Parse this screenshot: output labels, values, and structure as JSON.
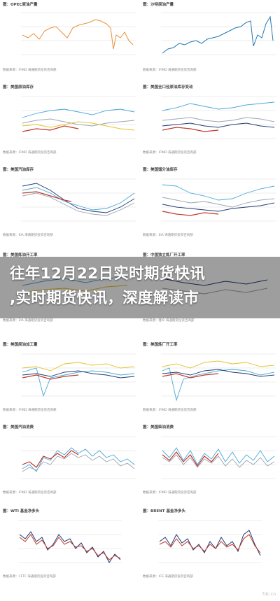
{
  "headline": {
    "line1": "往年12月22日实时期货快讯",
    "line2": ",实时期货快讯，深度解读市"
  },
  "panels": [
    {
      "title": "图：OPEC原油产量",
      "source": "数据来源：IFIND 海通期货投资咨询部"
    },
    {
      "title": "图：沙特原油产量",
      "source": "数据来源：IFIND 海通期货投资咨询部"
    },
    {
      "title": "图：美国原油库存",
      "source": "数据来源：IFIND 海通期货投资咨询部"
    },
    {
      "title": "图：美国全口径原油库存变动",
      "source": "数据来源：IFIND 海通期货投资咨询部"
    },
    {
      "title": "图：美国汽油库存",
      "source": "数据来源：EIA 海通期货投资咨询部"
    },
    {
      "title": "图：美国馏分油库存",
      "source": "数据来源：EIA 海通期货投资咨询部"
    },
    {
      "title": "图：美国炼油开工率",
      "source": "数据来源：EIA 海通期货投资咨询部"
    },
    {
      "title": "图：中国独立炼厂开工率",
      "source": "数据来源：隆众 海通期货投资咨询部"
    },
    {
      "title": "图：美国原油加工量",
      "source": "数据来源：IFIND 海通期货投资咨询部"
    },
    {
      "title": "图：美国炼厂开工率",
      "source": "数据来源：IFIND 海通期货投资咨询部"
    },
    {
      "title": "图：美国汽油消费",
      "source": "数据来源：IFIND 海通期货投资咨询部"
    },
    {
      "title": "图：美国柴油消费",
      "source": "数据来源：IFIND 海通期货投资咨询部"
    },
    {
      "title": "图：WTI 基金净多头",
      "source": "数据来源：CFTC 海通期货投资咨询部"
    },
    {
      "title": "图：BRENT 基金净多头",
      "source": "数据来源：ICE 海通期货投资咨询部"
    }
  ],
  "colors": {
    "orange": "#e69138",
    "blue": "#1f77b4",
    "teal": "#4aa8d8",
    "red": "#c0392b",
    "navy": "#1f3b73",
    "gray": "#9aa5b1",
    "yellow": "#e6c229"
  },
  "watermark": "7dc.cn"
}
